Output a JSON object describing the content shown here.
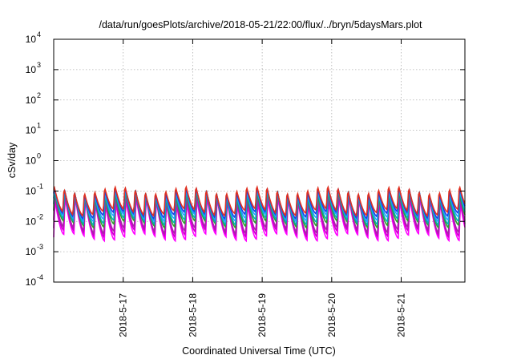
{
  "chart_data": {
    "type": "line",
    "title": "/data/run/goesPlots/archive/2018-05-21/22:00/flux/../bryn/5daysMars.plot",
    "xlabel": "Coordinated Universal Time (UTC)",
    "ylabel": "cSv/day",
    "yscale": "log",
    "ylim": [
      0.0001,
      10000
    ],
    "xlim_days": [
      "2018-05-16 00:00",
      "2018-05-21 22:00"
    ],
    "y_ticks": [
      {
        "mantissa": "10",
        "exp": "-4",
        "value": 0.0001
      },
      {
        "mantissa": "10",
        "exp": "-3",
        "value": 0.001
      },
      {
        "mantissa": "10",
        "exp": "-2",
        "value": 0.01
      },
      {
        "mantissa": "10",
        "exp": "-1",
        "value": 0.1
      },
      {
        "mantissa": "10",
        "exp": "0",
        "value": 1
      },
      {
        "mantissa": "10",
        "exp": "1",
        "value": 10
      },
      {
        "mantissa": "10",
        "exp": "2",
        "value": 100
      },
      {
        "mantissa": "10",
        "exp": "3",
        "value": 1000
      },
      {
        "mantissa": "10",
        "exp": "4",
        "value": 10000
      }
    ],
    "x_ticks": [
      "2018-5-17",
      "2018-5-18",
      "2018-5-19",
      "2018-5-20",
      "2018-5-21"
    ],
    "grid": true,
    "legend": "none",
    "pattern": {
      "period_hours": 3.5,
      "description": "sawtooth oscillation, sharp rise then decay"
    },
    "series": [
      {
        "color": "#ff00ff",
        "peak": 0.05,
        "trough": 0.003
      },
      {
        "color": "#cc00cc",
        "peak": 0.06,
        "trough": 0.004
      },
      {
        "color": "#aa22aa",
        "peak": 0.07,
        "trough": 0.005
      },
      {
        "color": "#2ca02c",
        "peak": 0.08,
        "trough": 0.008
      },
      {
        "color": "#00b0b0",
        "peak": 0.09,
        "trough": 0.01
      },
      {
        "color": "#1f9fff",
        "peak": 0.1,
        "trough": 0.013
      },
      {
        "color": "#2040e0",
        "peak": 0.11,
        "trough": 0.016
      },
      {
        "color": "#e03020",
        "peak": 0.12,
        "trough": 0.02
      }
    ]
  }
}
